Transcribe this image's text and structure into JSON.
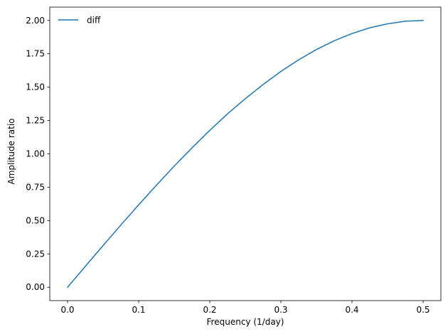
{
  "chart_data": {
    "type": "line",
    "xlabel": "Frequency (1/day)",
    "ylabel": "Amplitude ratio",
    "xlim": [
      -0.025,
      0.525
    ],
    "ylim": [
      -0.1,
      2.1
    ],
    "xticks": [
      0.0,
      0.1,
      0.2,
      0.3,
      0.4,
      0.5
    ],
    "xtick_labels": [
      "0.0",
      "0.1",
      "0.2",
      "0.3",
      "0.4",
      "0.5"
    ],
    "yticks": [
      0.0,
      0.25,
      0.5,
      0.75,
      1.0,
      1.25,
      1.5,
      1.75,
      2.0
    ],
    "ytick_labels": [
      "0.00",
      "0.25",
      "0.50",
      "0.75",
      "1.00",
      "1.25",
      "1.50",
      "1.75",
      "2.00"
    ],
    "grid": false,
    "legend_position": "top-left",
    "series": [
      {
        "name": "diff",
        "color": "#1f77b4",
        "x": [
          0.0,
          0.025,
          0.05,
          0.075,
          0.1,
          0.125,
          0.15,
          0.175,
          0.2,
          0.225,
          0.25,
          0.275,
          0.3,
          0.325,
          0.35,
          0.375,
          0.4,
          0.425,
          0.45,
          0.475,
          0.5
        ],
        "y": [
          0.0,
          0.157,
          0.313,
          0.467,
          0.618,
          0.765,
          0.908,
          1.045,
          1.176,
          1.3,
          1.414,
          1.52,
          1.618,
          1.705,
          1.782,
          1.848,
          1.902,
          1.945,
          1.975,
          1.994,
          2.0
        ]
      }
    ]
  }
}
